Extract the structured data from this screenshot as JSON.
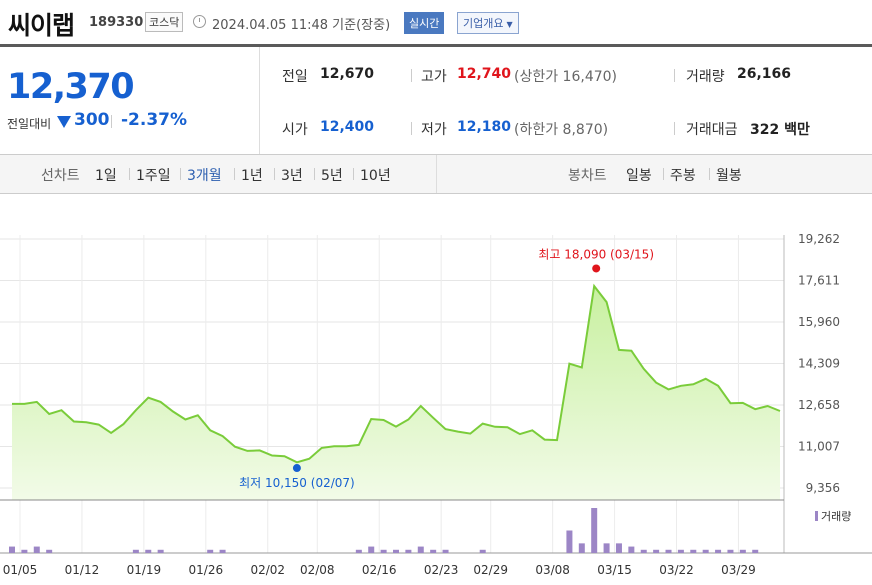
{
  "header": {
    "name": "씨이랩",
    "code": "189330",
    "market": "코스닥",
    "datetime": "2024.04.05 11:48",
    "basis": "기준(장중)",
    "realtime_label": "실시간",
    "corp_label": "기업개요"
  },
  "price": {
    "current": "12,370",
    "change_label": "전일대비",
    "change_value": "300",
    "change_pct": "-2.37%"
  },
  "quote": {
    "prev_label": "전일",
    "prev_value": "12,670",
    "high_label": "고가",
    "high_value": "12,740",
    "upper_limit": "(상한가 16,470)",
    "volume_label": "거래량",
    "volume_value": "26,166",
    "open_label": "시가",
    "open_value": "12,400",
    "low_label": "저가",
    "low_value": "12,180",
    "lower_limit": "(하한가 8,870)",
    "amount_label": "거래대금",
    "amount_value": "322",
    "amount_unit": "백만"
  },
  "tabs": {
    "line_label": "선차트",
    "line_items": [
      "1일",
      "1주일",
      "3개월",
      "1년",
      "3년",
      "5년",
      "10년"
    ],
    "line_selected": "3개월",
    "candle_label": "봉차트",
    "candle_items": [
      "일봉",
      "주봉",
      "월봉"
    ]
  },
  "colors": {
    "line": "#7acc3a",
    "fill_top": "#c8f0a0",
    "fill_bottom": "#f2fbe8",
    "up": "#e0151c",
    "down": "#1660d0",
    "volume": "#9c86c6"
  },
  "chart_data": {
    "type": "area",
    "title": "",
    "ylim": [
      9356,
      19262
    ],
    "y_ticks": [
      "19,262",
      "17,611",
      "15,960",
      "14,309",
      "12,658",
      "11,007",
      "9,356"
    ],
    "x_ticks": [
      "01/05",
      "01/12",
      "01/19",
      "01/26",
      "02/02",
      "02/08",
      "02/16",
      "02/23",
      "02/29",
      "03/08",
      "03/15",
      "03/22",
      "03/29"
    ],
    "x_tick_index": [
      0,
      5,
      10,
      15,
      20,
      24,
      29,
      34,
      38,
      43,
      48,
      53,
      58
    ],
    "grid": true,
    "series": [
      {
        "values": [
          12700,
          12700,
          12780,
          12300,
          12450,
          12000,
          11970,
          11880,
          11550,
          11900,
          12450,
          12950,
          12780,
          12400,
          12080,
          12250,
          11650,
          11420,
          11000,
          10830,
          10850,
          10650,
          10620,
          10380,
          10520,
          10950,
          11020,
          11020,
          11070,
          12100,
          12060,
          11800,
          12080,
          12620,
          12150,
          11700,
          11600,
          11520,
          11920,
          11790,
          11770,
          11500,
          11650,
          11280,
          11260,
          14300,
          14150,
          17390,
          16750,
          14850,
          14820,
          14100,
          13550,
          13280,
          13420,
          13480,
          13700,
          13420,
          12730,
          12740,
          12490,
          12620,
          12420
        ]
      }
    ],
    "volume_label": "거래량",
    "volume": [
      2,
      1,
      2,
      1,
      0,
      0,
      0,
      0,
      0,
      0,
      1,
      1,
      1,
      0,
      0,
      0,
      1,
      1,
      0,
      0,
      0,
      0,
      0,
      0,
      0,
      0,
      0,
      0,
      1,
      2,
      1,
      1,
      1,
      2,
      1,
      1,
      0,
      0,
      1,
      0,
      0,
      0,
      0,
      0,
      0,
      7,
      3,
      14,
      3,
      3,
      2,
      1,
      1,
      1,
      1,
      1,
      1,
      1,
      1,
      1,
      1,
      0,
      0
    ],
    "annotations": {
      "max": {
        "label": "최고 18,090 (03/15)",
        "value": 18090,
        "index": 47
      },
      "min": {
        "label": "최저 10,150 (02/07)",
        "value": 10150,
        "index": 23
      }
    }
  }
}
